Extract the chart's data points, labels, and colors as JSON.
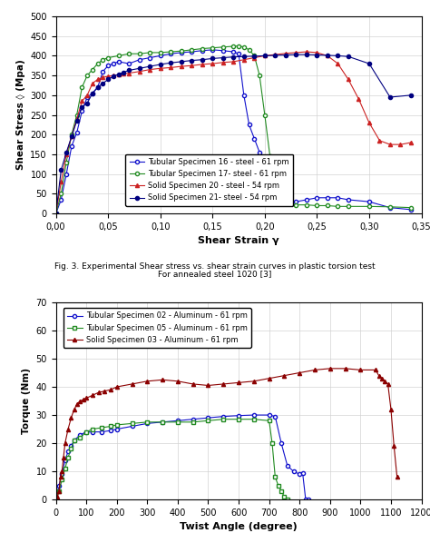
{
  "fig_caption1": "Fig. 3. Experimental Shear stress vs. shear strain curves in plastic torsion test",
  "fig_caption2": "For annealed steel 1020 [3]",
  "ax1": {
    "xlabel": "Shear Strain γ",
    "ylabel": "Shear Stress ◊ (Mpa)",
    "xlim": [
      0,
      0.35
    ],
    "ylim": [
      0,
      500
    ],
    "xticks": [
      0.0,
      0.05,
      0.1,
      0.15,
      0.2,
      0.25,
      0.3,
      0.35
    ],
    "yticks": [
      0,
      50,
      100,
      150,
      200,
      250,
      300,
      350,
      400,
      450,
      500
    ],
    "xticklabels": [
      "0,00",
      "0,05",
      "0,10",
      "0,15",
      "0,20",
      "0,25",
      "0,30",
      "0,35"
    ],
    "yticklabels": [
      "0",
      "50",
      "100",
      "150",
      "200",
      "250",
      "300",
      "350",
      "400",
      "450",
      "500"
    ],
    "series": [
      {
        "label": "Tubular Specimen 16 - steel - 61 rpm",
        "color": "#1111cc",
        "marker": "o",
        "markerfacecolor": "white",
        "x": [
          0.0,
          0.005,
          0.01,
          0.015,
          0.02,
          0.025,
          0.03,
          0.035,
          0.04,
          0.045,
          0.05,
          0.055,
          0.06,
          0.07,
          0.08,
          0.09,
          0.1,
          0.11,
          0.12,
          0.13,
          0.14,
          0.15,
          0.16,
          0.17,
          0.175,
          0.18,
          0.185,
          0.19,
          0.195,
          0.2,
          0.205,
          0.21,
          0.22,
          0.23,
          0.24,
          0.25,
          0.26,
          0.27,
          0.28,
          0.3,
          0.32,
          0.34
        ],
        "y": [
          0,
          35,
          100,
          170,
          205,
          260,
          295,
          305,
          320,
          360,
          375,
          380,
          385,
          380,
          390,
          395,
          400,
          405,
          408,
          410,
          413,
          415,
          413,
          410,
          405,
          300,
          225,
          190,
          155,
          105,
          70,
          40,
          35,
          30,
          35,
          40,
          40,
          40,
          35,
          30,
          15,
          10
        ]
      },
      {
        "label": "Tubular Specimen 17- steel - 61 rpm",
        "color": "#228B22",
        "marker": "o",
        "markerfacecolor": "white",
        "x": [
          0.0,
          0.005,
          0.01,
          0.015,
          0.02,
          0.025,
          0.03,
          0.035,
          0.04,
          0.045,
          0.05,
          0.06,
          0.07,
          0.08,
          0.09,
          0.1,
          0.11,
          0.12,
          0.13,
          0.14,
          0.15,
          0.16,
          0.17,
          0.175,
          0.18,
          0.185,
          0.19,
          0.195,
          0.2,
          0.205,
          0.21,
          0.215,
          0.22,
          0.23,
          0.24,
          0.25,
          0.26,
          0.27,
          0.28,
          0.3,
          0.32,
          0.34
        ],
        "y": [
          0,
          50,
          130,
          200,
          250,
          320,
          350,
          365,
          380,
          390,
          395,
          400,
          405,
          405,
          408,
          408,
          410,
          412,
          415,
          418,
          420,
          422,
          424,
          425,
          422,
          415,
          400,
          350,
          250,
          145,
          50,
          30,
          25,
          22,
          22,
          20,
          20,
          18,
          18,
          18,
          17,
          15
        ]
      },
      {
        "label": "Solid Specimen 20 - steel - 54 rpm",
        "color": "#cc2222",
        "marker": "^",
        "markerfacecolor": "#cc2222",
        "x": [
          0.0,
          0.005,
          0.01,
          0.015,
          0.02,
          0.025,
          0.03,
          0.035,
          0.04,
          0.045,
          0.05,
          0.055,
          0.06,
          0.065,
          0.07,
          0.08,
          0.09,
          0.1,
          0.11,
          0.12,
          0.13,
          0.14,
          0.15,
          0.16,
          0.17,
          0.18,
          0.19,
          0.2,
          0.21,
          0.22,
          0.23,
          0.24,
          0.25,
          0.26,
          0.27,
          0.28,
          0.29,
          0.3,
          0.31,
          0.32,
          0.33,
          0.34
        ],
        "y": [
          0,
          80,
          150,
          195,
          240,
          285,
          300,
          330,
          340,
          345,
          348,
          350,
          352,
          354,
          356,
          360,
          365,
          368,
          370,
          373,
          375,
          378,
          380,
          383,
          385,
          390,
          395,
          400,
          403,
          406,
          408,
          410,
          408,
          400,
          380,
          340,
          290,
          230,
          185,
          175,
          175,
          180
        ]
      },
      {
        "label": "Solid Specimen 21- steel - 54 rpm",
        "color": "#000080",
        "marker": "o",
        "markerfacecolor": "#000080",
        "x": [
          0.0,
          0.005,
          0.01,
          0.015,
          0.02,
          0.025,
          0.03,
          0.035,
          0.04,
          0.045,
          0.05,
          0.055,
          0.06,
          0.065,
          0.07,
          0.08,
          0.09,
          0.1,
          0.11,
          0.12,
          0.13,
          0.14,
          0.15,
          0.16,
          0.17,
          0.18,
          0.19,
          0.2,
          0.21,
          0.22,
          0.23,
          0.24,
          0.25,
          0.26,
          0.27,
          0.28,
          0.3,
          0.32,
          0.34
        ],
        "y": [
          0,
          110,
          155,
          195,
          235,
          270,
          280,
          305,
          320,
          330,
          340,
          348,
          353,
          358,
          363,
          368,
          373,
          378,
          382,
          385,
          388,
          390,
          393,
          395,
          397,
          398,
          399,
          400,
          401,
          402,
          403,
          403,
          402,
          401,
          400,
          398,
          380,
          295,
          300
        ]
      }
    ]
  },
  "ax2": {
    "xlabel": "Twist Angle (degree)",
    "ylabel": "Torque (Nm)",
    "xlim": [
      0,
      1200
    ],
    "ylim": [
      0,
      70
    ],
    "xticks": [
      0,
      100,
      200,
      300,
      400,
      500,
      600,
      700,
      800,
      900,
      1000,
      1100,
      1200
    ],
    "yticks": [
      0,
      10,
      20,
      30,
      40,
      50,
      60,
      70
    ],
    "series": [
      {
        "label": "Tubular Specimen 02 - Aluminum - 61 rpm",
        "color": "#1111cc",
        "marker": "o",
        "markerfacecolor": "white",
        "x": [
          0,
          10,
          20,
          30,
          40,
          50,
          60,
          80,
          100,
          120,
          150,
          180,
          200,
          250,
          300,
          350,
          400,
          450,
          500,
          550,
          600,
          650,
          700,
          720,
          740,
          760,
          780,
          800,
          810,
          820,
          830
        ],
        "y": [
          0,
          5,
          9,
          14,
          17,
          19,
          21,
          23,
          24,
          24,
          24,
          24.5,
          25,
          26,
          27,
          27.5,
          28,
          28.5,
          29,
          29.5,
          29.8,
          30,
          30,
          29.5,
          20,
          12,
          10,
          9,
          9.5,
          0,
          0
        ]
      },
      {
        "label": "Tubular Specimen 05 - Aluminum - 61 rpm",
        "color": "#228B22",
        "marker": "s",
        "markerfacecolor": "white",
        "x": [
          0,
          10,
          20,
          30,
          40,
          50,
          60,
          80,
          100,
          120,
          150,
          180,
          200,
          250,
          300,
          350,
          400,
          450,
          500,
          550,
          600,
          650,
          700,
          710,
          720,
          730,
          740,
          750,
          760
        ],
        "y": [
          0,
          3,
          7,
          11,
          15,
          18,
          21,
          22,
          24,
          25,
          25.5,
          26,
          26.5,
          27,
          27.5,
          27.5,
          27.5,
          27.5,
          28,
          28.5,
          28.5,
          28.5,
          28,
          20,
          8,
          5,
          3,
          1,
          0
        ]
      },
      {
        "label": "Solid Specimen 03 - Aluminum - 61 rpm",
        "color": "#8B0000",
        "marker": "^",
        "markerfacecolor": "#8B0000",
        "x": [
          0,
          5,
          10,
          15,
          20,
          25,
          30,
          40,
          50,
          60,
          70,
          80,
          90,
          100,
          120,
          140,
          160,
          180,
          200,
          250,
          300,
          350,
          400,
          450,
          500,
          550,
          600,
          650,
          700,
          750,
          800,
          850,
          900,
          950,
          1000,
          1050,
          1060,
          1070,
          1080,
          1090,
          1100,
          1110,
          1120
        ],
        "y": [
          0,
          1,
          3,
          8,
          10,
          15,
          20,
          25,
          29,
          32,
          34,
          35,
          35.5,
          36,
          37,
          38,
          38.5,
          39,
          40,
          41,
          42,
          42.5,
          42,
          41,
          40.5,
          41,
          41.5,
          42,
          43,
          44,
          45,
          46,
          46.5,
          46.5,
          46,
          46,
          44,
          43,
          42,
          41,
          32,
          19,
          8
        ]
      }
    ]
  }
}
